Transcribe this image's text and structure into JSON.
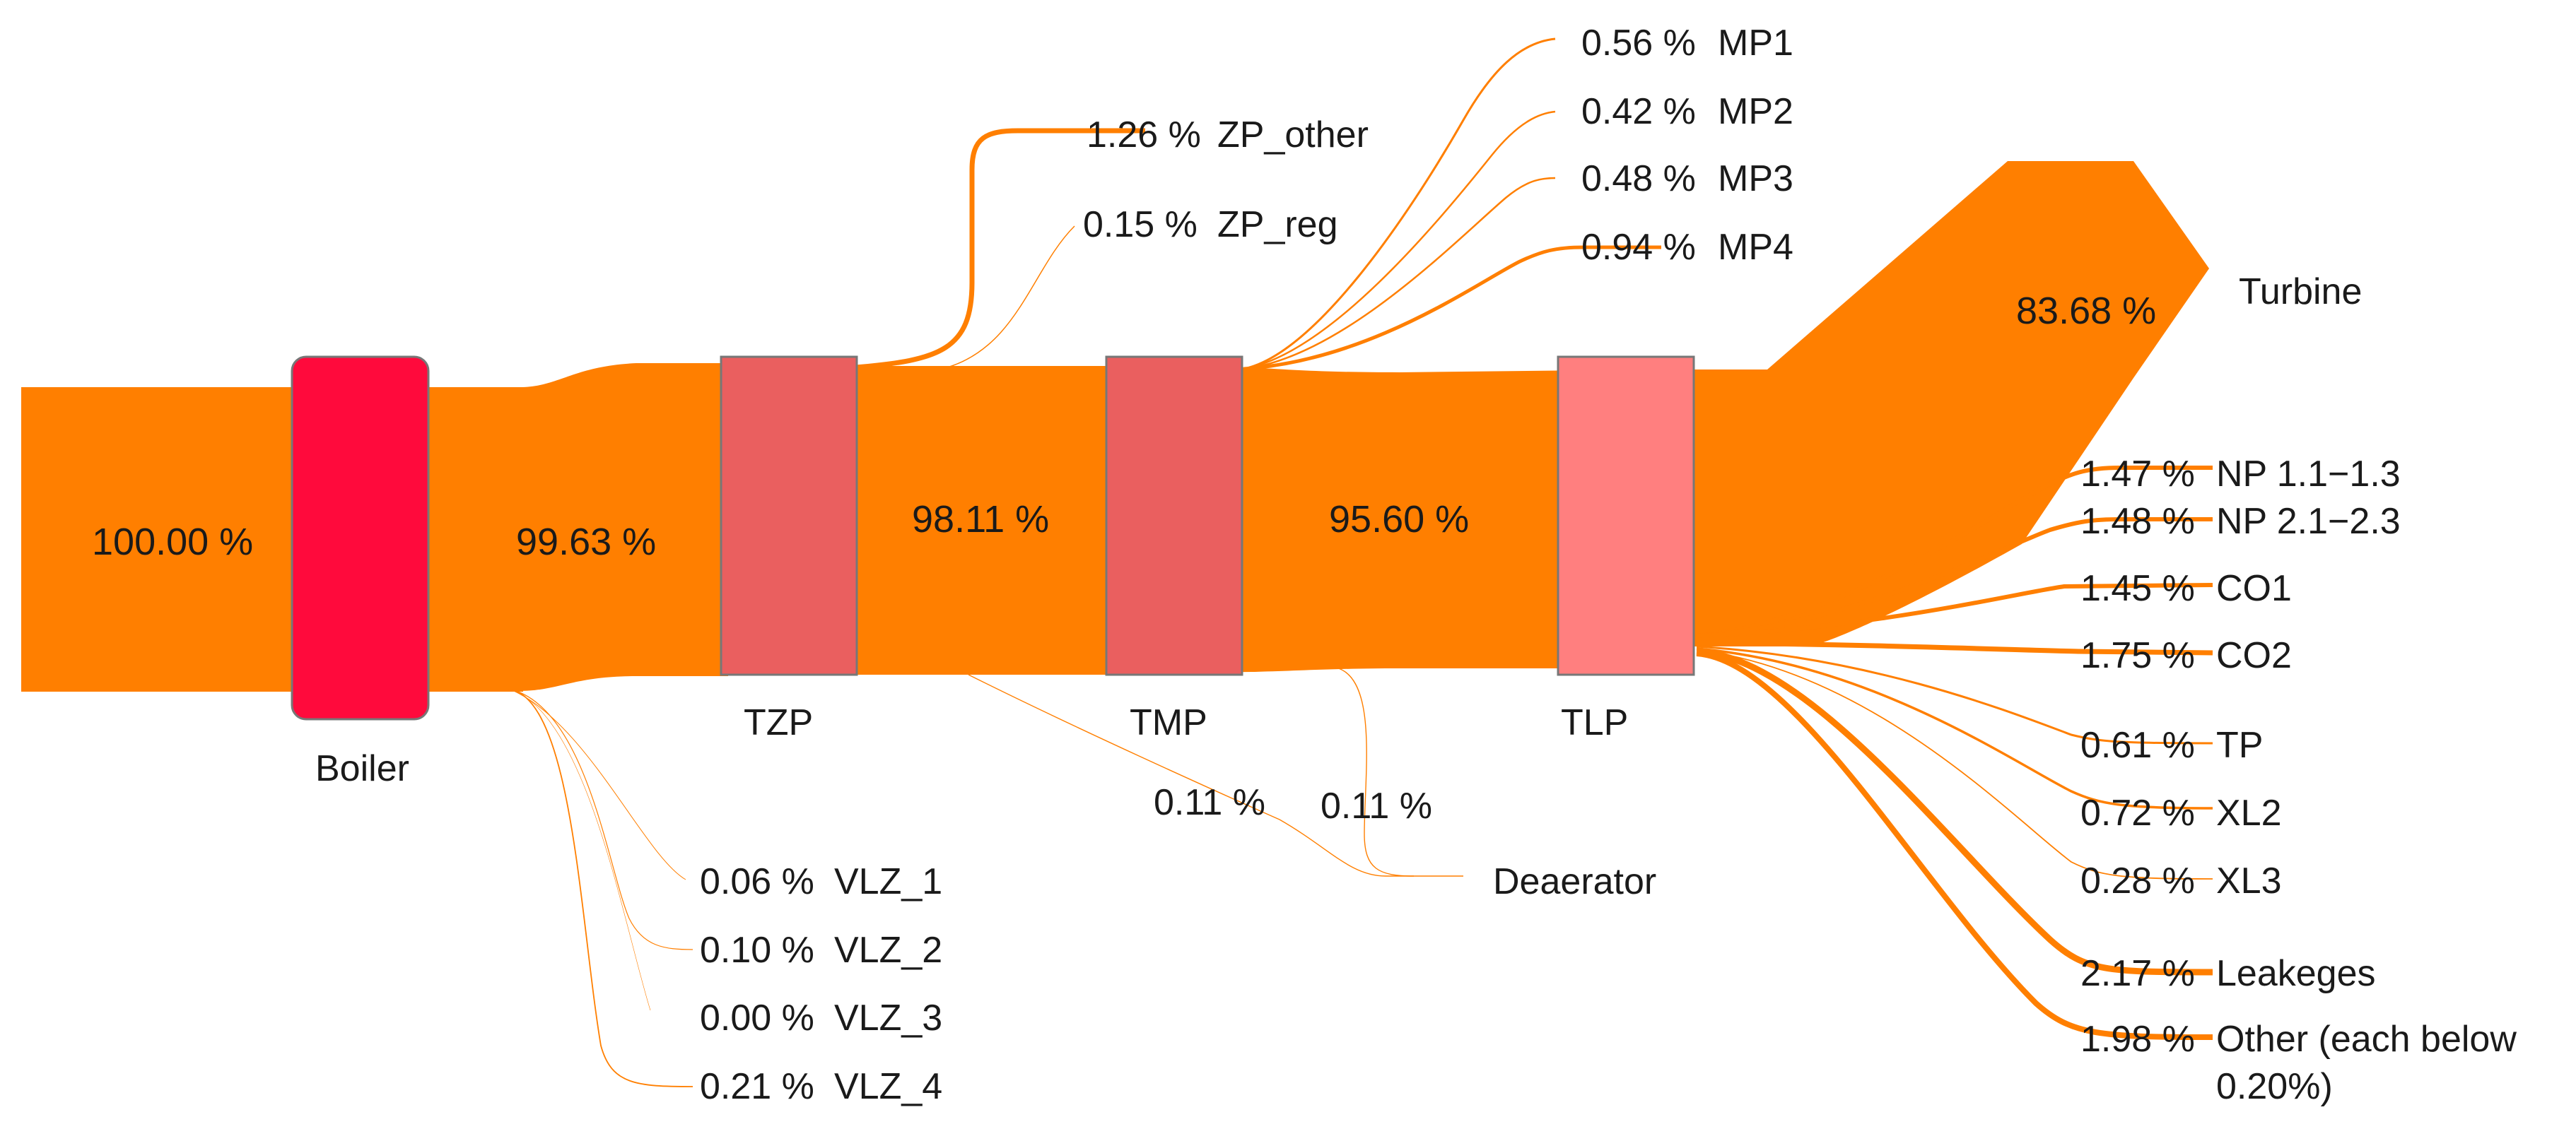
{
  "colors": {
    "flow": "#FF7F00",
    "boiler": "#FF0A3C",
    "extraction_node": "#EA5F5F",
    "tlp_node": "#FF7F7F",
    "node_border": "#777777"
  },
  "nodes": {
    "boiler": "Boiler",
    "tzp": "TZP",
    "tmp": "TMP",
    "tlp": "TLP",
    "turbine": "Turbine",
    "deaerator": "Deaerator"
  },
  "main_flows": {
    "input": "100.00 %",
    "after_boiler": "99.63 %",
    "after_tzp": "98.11 %",
    "after_tmp": "95.60 %",
    "turbine": "83.68 %"
  },
  "deaerator_flows": [
    "0.11 %",
    "0.11 %"
  ],
  "branches": [
    {
      "pct": "1.26 %",
      "name": "ZP_other"
    },
    {
      "pct": "0.15 %",
      "name": "ZP_reg"
    },
    {
      "pct": "0.56 %",
      "name": "MP1"
    },
    {
      "pct": "0.42 %",
      "name": "MP2"
    },
    {
      "pct": "0.48 %",
      "name": "MP3"
    },
    {
      "pct": "0.94 %",
      "name": "MP4"
    },
    {
      "pct": "1.47 %",
      "name": "NP 1.1−1.3"
    },
    {
      "pct": "1.48 %",
      "name": "NP 2.1−2.3"
    },
    {
      "pct": "1.45 %",
      "name": "CO1"
    },
    {
      "pct": "1.75 %",
      "name": "CO2"
    },
    {
      "pct": "0.61 %",
      "name": "TP"
    },
    {
      "pct": "0.72 %",
      "name": "XL2"
    },
    {
      "pct": "0.28 %",
      "name": "XL3"
    },
    {
      "pct": "2.17 %",
      "name": "Leakeges"
    },
    {
      "pct": "1.98 %",
      "name": "Other (each below",
      "name_line2": "0.20%)"
    },
    {
      "pct": "0.06 %",
      "name": "VLZ_1"
    },
    {
      "pct": "0.10 %",
      "name": "VLZ_2"
    },
    {
      "pct": "0.00 %",
      "name": "VLZ_3"
    },
    {
      "pct": "0.21 %",
      "name": "VLZ_4"
    }
  ]
}
